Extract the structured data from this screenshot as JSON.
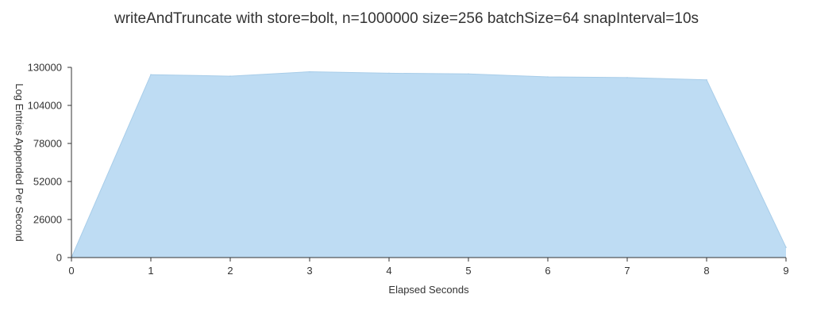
{
  "chart_data": {
    "type": "area",
    "title": "writeAndTruncate with store=bolt, n=1000000 size=256 batchSize=64 snapInterval=10s",
    "xlabel": "Elapsed Seconds",
    "ylabel": "Log Entries Appended Per Second",
    "x": [
      0,
      1,
      2,
      3,
      4,
      5,
      6,
      7,
      8,
      9
    ],
    "series": [
      {
        "values": [
          0,
          125000,
          124000,
          127000,
          126000,
          125500,
          123500,
          123000,
          121500,
          7000
        ]
      }
    ],
    "xlim": [
      0,
      9
    ],
    "ylim": [
      0,
      130000
    ],
    "xticks": [
      "0",
      "1",
      "2",
      "3",
      "4",
      "5",
      "6",
      "7",
      "8",
      "9"
    ],
    "yticks": [
      "0",
      "26000",
      "52000",
      "78000",
      "104000",
      "130000"
    ],
    "grid": false,
    "colors": {
      "fill": "#bedcf3",
      "stroke": "#a8cde9",
      "axis": "#333333"
    }
  }
}
